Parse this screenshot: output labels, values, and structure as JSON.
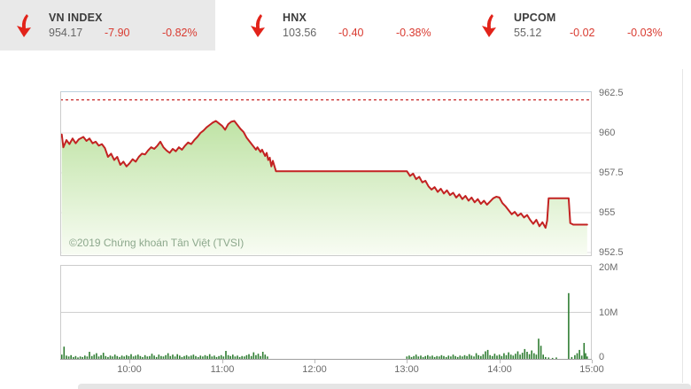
{
  "header": {
    "indices": [
      {
        "name": "VN INDEX",
        "value": "954.17",
        "change": "-7.90",
        "pct": "-0.82%",
        "direction": "down",
        "active": true
      },
      {
        "name": "HNX",
        "value": "103.56",
        "change": "-0.40",
        "pct": "-0.38%",
        "direction": "down",
        "active": false
      },
      {
        "name": "UPCOM",
        "value": "55.12",
        "change": "-0.02",
        "pct": "-0.03%",
        "direction": "down",
        "active": false
      }
    ]
  },
  "watermark": "©2019 Chứng khoán Tân Việt (TVSI)",
  "colors": {
    "down_red": "#e2231a",
    "line_red": "#c32222",
    "ref_dash_red": "#cc3a3a",
    "fill_green_top": "#bfe3a5",
    "fill_green_bottom": "#f8fcf3",
    "bar_green": "#2f7d32",
    "grid_gray": "#e2e2e2",
    "axis_text_gray": "#6b6b6b",
    "active_tile_gray": "#e9e9e9"
  },
  "chart_data": [
    {
      "type": "area",
      "title": "VN-Index intraday price",
      "x_unit": "minutes from 09:00",
      "xlim_minutes": [
        15,
        360
      ],
      "ylim": [
        952.5,
        962.5
      ],
      "y_ticks": [
        962.5,
        960,
        957.5,
        955,
        952.5
      ],
      "y_tick_labels": [
        "962.5",
        "960",
        "957.5",
        "955",
        "952.5"
      ],
      "x_ticks": [
        "10:00",
        "11:00",
        "12:00",
        "13:00",
        "14:00",
        "15:00"
      ],
      "x_tick_minutes": [
        60,
        120,
        180,
        240,
        300,
        360
      ],
      "reference_line": 962.07,
      "legend": "none",
      "grid": "horizontal",
      "series": [
        [
          16,
          959.9
        ],
        [
          17,
          959.1
        ],
        [
          19,
          959.55
        ],
        [
          21,
          959.3
        ],
        [
          23,
          959.65
        ],
        [
          25,
          959.35
        ],
        [
          27,
          959.6
        ],
        [
          30,
          959.75
        ],
        [
          32,
          959.5
        ],
        [
          34,
          959.65
        ],
        [
          36,
          959.35
        ],
        [
          38,
          959.45
        ],
        [
          40,
          959.2
        ],
        [
          42,
          959.3
        ],
        [
          44,
          959.05
        ],
        [
          46,
          958.5
        ],
        [
          48,
          958.7
        ],
        [
          50,
          958.3
        ],
        [
          52,
          958.5
        ],
        [
          54,
          958.0
        ],
        [
          56,
          958.2
        ],
        [
          58,
          957.9
        ],
        [
          60,
          958.1
        ],
        [
          62,
          958.35
        ],
        [
          64,
          958.2
        ],
        [
          66,
          958.5
        ],
        [
          68,
          958.7
        ],
        [
          70,
          958.65
        ],
        [
          72,
          958.9
        ],
        [
          74,
          959.1
        ],
        [
          76,
          959.0
        ],
        [
          78,
          959.2
        ],
        [
          80,
          959.45
        ],
        [
          82,
          959.1
        ],
        [
          84,
          958.9
        ],
        [
          86,
          958.75
        ],
        [
          88,
          959.0
        ],
        [
          90,
          958.85
        ],
        [
          92,
          959.1
        ],
        [
          94,
          958.95
        ],
        [
          96,
          959.2
        ],
        [
          98,
          959.4
        ],
        [
          100,
          959.3
        ],
        [
          102,
          959.55
        ],
        [
          104,
          959.75
        ],
        [
          106,
          960.0
        ],
        [
          108,
          960.15
        ],
        [
          110,
          960.35
        ],
        [
          112,
          960.5
        ],
        [
          114,
          960.65
        ],
        [
          116,
          960.75
        ],
        [
          118,
          960.6
        ],
        [
          120,
          960.45
        ],
        [
          122,
          960.2
        ],
        [
          124,
          960.55
        ],
        [
          126,
          960.7
        ],
        [
          128,
          960.75
        ],
        [
          130,
          960.5
        ],
        [
          132,
          960.25
        ],
        [
          134,
          960.05
        ],
        [
          136,
          959.7
        ],
        [
          138,
          959.45
        ],
        [
          140,
          959.2
        ],
        [
          142,
          958.95
        ],
        [
          143,
          959.1
        ],
        [
          145,
          958.8
        ],
        [
          146,
          958.95
        ],
        [
          148,
          958.55
        ],
        [
          149,
          958.75
        ],
        [
          150,
          958.3
        ],
        [
          151,
          958.45
        ],
        [
          152,
          957.9
        ],
        [
          153,
          958.25
        ],
        [
          155,
          957.6
        ],
        [
          240,
          957.6
        ],
        [
          242,
          957.3
        ],
        [
          244,
          957.45
        ],
        [
          246,
          957.1
        ],
        [
          248,
          957.25
        ],
        [
          250,
          956.9
        ],
        [
          252,
          957.0
        ],
        [
          254,
          956.65
        ],
        [
          256,
          956.45
        ],
        [
          258,
          956.6
        ],
        [
          260,
          956.3
        ],
        [
          262,
          956.5
        ],
        [
          264,
          956.2
        ],
        [
          266,
          956.4
        ],
        [
          268,
          956.1
        ],
        [
          270,
          956.25
        ],
        [
          272,
          955.95
        ],
        [
          274,
          956.15
        ],
        [
          276,
          955.85
        ],
        [
          278,
          956.05
        ],
        [
          280,
          955.75
        ],
        [
          282,
          955.95
        ],
        [
          284,
          955.65
        ],
        [
          286,
          955.85
        ],
        [
          288,
          955.55
        ],
        [
          290,
          955.75
        ],
        [
          292,
          955.5
        ],
        [
          294,
          955.7
        ],
        [
          296,
          955.9
        ],
        [
          298,
          956.0
        ],
        [
          300,
          955.95
        ],
        [
          302,
          955.6
        ],
        [
          304,
          955.4
        ],
        [
          306,
          955.15
        ],
        [
          308,
          954.9
        ],
        [
          310,
          955.05
        ],
        [
          312,
          954.8
        ],
        [
          314,
          954.95
        ],
        [
          316,
          954.7
        ],
        [
          318,
          954.85
        ],
        [
          320,
          954.55
        ],
        [
          322,
          954.3
        ],
        [
          324,
          954.55
        ],
        [
          326,
          954.15
        ],
        [
          328,
          954.4
        ],
        [
          330,
          954.05
        ],
        [
          331,
          954.5
        ],
        [
          332,
          955.9
        ],
        [
          345,
          955.9
        ],
        [
          346,
          954.35
        ],
        [
          348,
          954.25
        ],
        [
          357,
          954.25
        ]
      ]
    },
    {
      "type": "bar",
      "title": "Volume",
      "y_unit": "shares (millions)",
      "ylim_millions": [
        0,
        20
      ],
      "y_tick_labels": [
        "20M",
        "10M",
        "0"
      ],
      "grid": "horizontal",
      "series": [
        [
          16,
          0.9
        ],
        [
          17.5,
          2.6
        ],
        [
          19,
          0.7
        ],
        [
          20.5,
          0.5
        ],
        [
          22,
          0.8
        ],
        [
          23.5,
          0.4
        ],
        [
          25,
          0.6
        ],
        [
          26.5,
          0.3
        ],
        [
          28,
          0.5
        ],
        [
          29.5,
          0.4
        ],
        [
          31,
          0.7
        ],
        [
          32.5,
          0.5
        ],
        [
          34,
          1.5
        ],
        [
          35.5,
          0.6
        ],
        [
          37,
          0.9
        ],
        [
          38.5,
          1.2
        ],
        [
          40,
          0.5
        ],
        [
          41.5,
          0.8
        ],
        [
          43,
          1.3
        ],
        [
          44.5,
          0.6
        ],
        [
          46,
          0.4
        ],
        [
          47.5,
          0.7
        ],
        [
          49,
          0.5
        ],
        [
          50.5,
          0.9
        ],
        [
          52,
          0.6
        ],
        [
          53.5,
          0.4
        ],
        [
          55,
          0.7
        ],
        [
          56.5,
          0.5
        ],
        [
          58,
          0.8
        ],
        [
          59.5,
          0.6
        ],
        [
          61,
          1.0
        ],
        [
          62.5,
          0.5
        ],
        [
          64,
          0.7
        ],
        [
          65.5,
          0.9
        ],
        [
          67,
          0.6
        ],
        [
          68.5,
          0.4
        ],
        [
          70,
          0.8
        ],
        [
          71.5,
          0.5
        ],
        [
          73,
          0.6
        ],
        [
          74.5,
          1.1
        ],
        [
          76,
          0.7
        ],
        [
          77.5,
          0.4
        ],
        [
          79,
          0.9
        ],
        [
          80.5,
          0.6
        ],
        [
          82,
          0.5
        ],
        [
          83.5,
          0.8
        ],
        [
          85,
          1.2
        ],
        [
          86.5,
          0.6
        ],
        [
          88,
          0.9
        ],
        [
          89.5,
          0.5
        ],
        [
          91,
          1.0
        ],
        [
          92.5,
          0.7
        ],
        [
          94,
          0.4
        ],
        [
          95.5,
          0.6
        ],
        [
          97,
          0.8
        ],
        [
          98.5,
          0.5
        ],
        [
          100,
          0.7
        ],
        [
          101.5,
          0.9
        ],
        [
          103,
          0.6
        ],
        [
          104.5,
          0.4
        ],
        [
          106,
          0.7
        ],
        [
          107.5,
          0.5
        ],
        [
          109,
          0.8
        ],
        [
          110.5,
          0.6
        ],
        [
          112,
          1.0
        ],
        [
          113.5,
          0.5
        ],
        [
          115,
          0.7
        ],
        [
          116.5,
          0.4
        ],
        [
          118,
          0.6
        ],
        [
          119.5,
          0.8
        ],
        [
          121,
          0.5
        ],
        [
          122.5,
          1.7
        ],
        [
          124,
          0.8
        ],
        [
          125.5,
          0.6
        ],
        [
          127,
          0.9
        ],
        [
          128.5,
          0.5
        ],
        [
          130,
          0.7
        ],
        [
          131.5,
          0.4
        ],
        [
          133,
          0.6
        ],
        [
          134.5,
          0.5
        ],
        [
          136,
          0.8
        ],
        [
          137.5,
          1.0
        ],
        [
          139,
          0.6
        ],
        [
          140.5,
          1.4
        ],
        [
          142,
          0.8
        ],
        [
          143.5,
          1.1
        ],
        [
          145,
          0.6
        ],
        [
          146.5,
          1.5
        ],
        [
          148,
          0.9
        ],
        [
          149.5,
          0.5
        ],
        [
          240,
          0.5
        ],
        [
          241.5,
          0.7
        ],
        [
          243,
          0.4
        ],
        [
          244.5,
          0.6
        ],
        [
          246,
          0.9
        ],
        [
          247.5,
          0.5
        ],
        [
          249,
          0.7
        ],
        [
          250.5,
          0.4
        ],
        [
          252,
          0.6
        ],
        [
          253.5,
          0.8
        ],
        [
          255,
          0.5
        ],
        [
          256.5,
          0.7
        ],
        [
          258,
          0.4
        ],
        [
          259.5,
          0.6
        ],
        [
          261,
          0.5
        ],
        [
          262.5,
          0.8
        ],
        [
          264,
          0.6
        ],
        [
          265.5,
          0.4
        ],
        [
          267,
          0.7
        ],
        [
          268.5,
          0.5
        ],
        [
          270,
          0.9
        ],
        [
          271.5,
          0.6
        ],
        [
          273,
          0.4
        ],
        [
          274.5,
          0.7
        ],
        [
          276,
          0.5
        ],
        [
          277.5,
          0.8
        ],
        [
          279,
          0.6
        ],
        [
          280.5,
          1.0
        ],
        [
          282,
          0.7
        ],
        [
          283.5,
          0.5
        ],
        [
          285,
          1.2
        ],
        [
          286.5,
          0.8
        ],
        [
          288,
          0.6
        ],
        [
          289.5,
          1.0
        ],
        [
          291,
          1.6
        ],
        [
          292.5,
          1.9
        ],
        [
          294,
          0.8
        ],
        [
          295.5,
          0.6
        ],
        [
          297,
          1.1
        ],
        [
          298.5,
          0.7
        ],
        [
          300,
          0.9
        ],
        [
          301.5,
          0.6
        ],
        [
          303,
          1.2
        ],
        [
          304.5,
          0.8
        ],
        [
          306,
          1.4
        ],
        [
          307.5,
          0.9
        ],
        [
          309,
          0.7
        ],
        [
          310.5,
          1.1
        ],
        [
          312,
          1.6
        ],
        [
          313.5,
          0.9
        ],
        [
          315,
          1.3
        ],
        [
          316.5,
          2.1
        ],
        [
          318,
          1.5
        ],
        [
          319.5,
          1.0
        ],
        [
          321,
          1.8
        ],
        [
          322.5,
          1.2
        ],
        [
          324,
          0.9
        ],
        [
          325.5,
          4.3
        ],
        [
          327,
          2.8
        ],
        [
          328.5,
          0.9
        ],
        [
          330,
          0.4
        ],
        [
          332,
          0.3
        ],
        [
          334.5,
          0.2
        ],
        [
          337,
          0.3
        ],
        [
          345,
          14.0
        ],
        [
          347,
          0.4
        ],
        [
          349,
          0.8
        ],
        [
          350.5,
          1.2
        ],
        [
          352,
          1.9
        ],
        [
          353.5,
          0.7
        ],
        [
          355,
          3.4
        ],
        [
          356,
          1.2
        ],
        [
          357,
          0.5
        ]
      ]
    }
  ]
}
